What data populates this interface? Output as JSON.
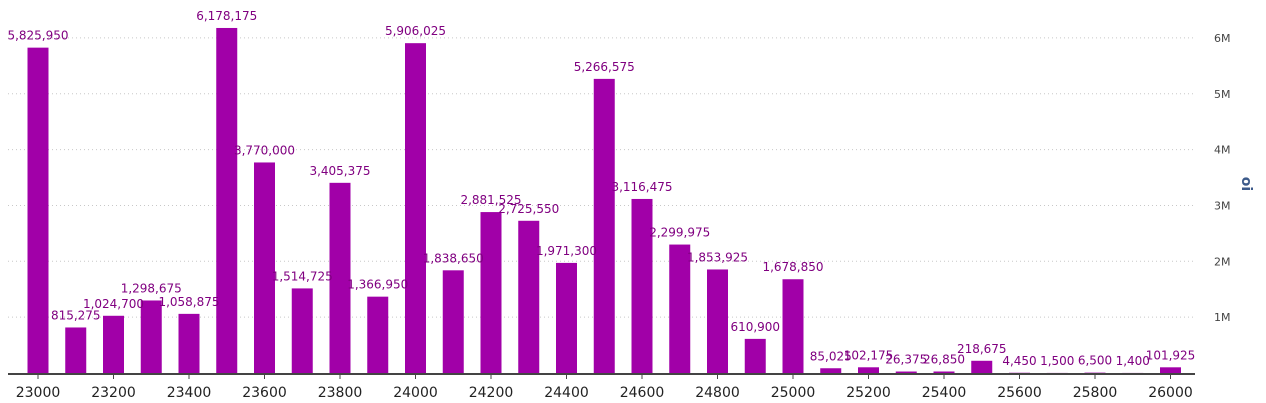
{
  "chart_data": {
    "type": "bar",
    "categories": [
      23000,
      23100,
      23200,
      23300,
      23400,
      23500,
      23600,
      23700,
      23800,
      23900,
      24000,
      24100,
      24200,
      24300,
      24400,
      24500,
      24600,
      24700,
      24800,
      24900,
      25000,
      25100,
      25200,
      25300,
      25400,
      25500,
      25600,
      25700,
      25800,
      25900,
      26000
    ],
    "values": [
      5825950,
      815275,
      1024700,
      1298675,
      1058875,
      6178175,
      3770000,
      1514725,
      3405375,
      1366950,
      5906025,
      1838650,
      2881525,
      2725550,
      1971300,
      5266575,
      3116475,
      2299975,
      1853925,
      610900,
      1678850,
      85025,
      102175,
      26375,
      26850,
      218675,
      4450,
      1500,
      6500,
      1400,
      101925
    ],
    "data_labels": [
      "5,825,950",
      "815,275",
      "1,024,700",
      "1,298,675",
      "1,058,875",
      "6,178,175",
      "3,770,000",
      "1,514,725",
      "3,405,375",
      "1,366,950",
      "5,906,025",
      "1,838,650",
      "2,881,525",
      "2,725,550",
      "1,971,300",
      "5,266,575",
      "3,116,475",
      "2,299,975",
      "1,853,925",
      "610,900",
      "1,678,850",
      "85,025",
      "102,175",
      "26,375",
      "26,850",
      "218,675",
      "4,450",
      "1,500",
      "6,500",
      "1,400",
      "101,925"
    ],
    "x_tick_labels": [
      "23000",
      "23200",
      "23400",
      "23600",
      "23800",
      "24000",
      "24200",
      "24400",
      "24600",
      "24800",
      "25000",
      "25200",
      "25400",
      "25600",
      "25800",
      "26000"
    ],
    "y_tick_labels": [
      "1M",
      "2M",
      "3M",
      "4M",
      "5M",
      "6M"
    ],
    "y_tick_values": [
      1000000,
      2000000,
      3000000,
      4000000,
      5000000,
      6000000
    ],
    "ylabel": "oi",
    "ylim": [
      0,
      6500000
    ],
    "y_axis_side": "right",
    "grid": "horizontal dotted",
    "bar_color": "#a100a8",
    "label_color": "#800080"
  }
}
